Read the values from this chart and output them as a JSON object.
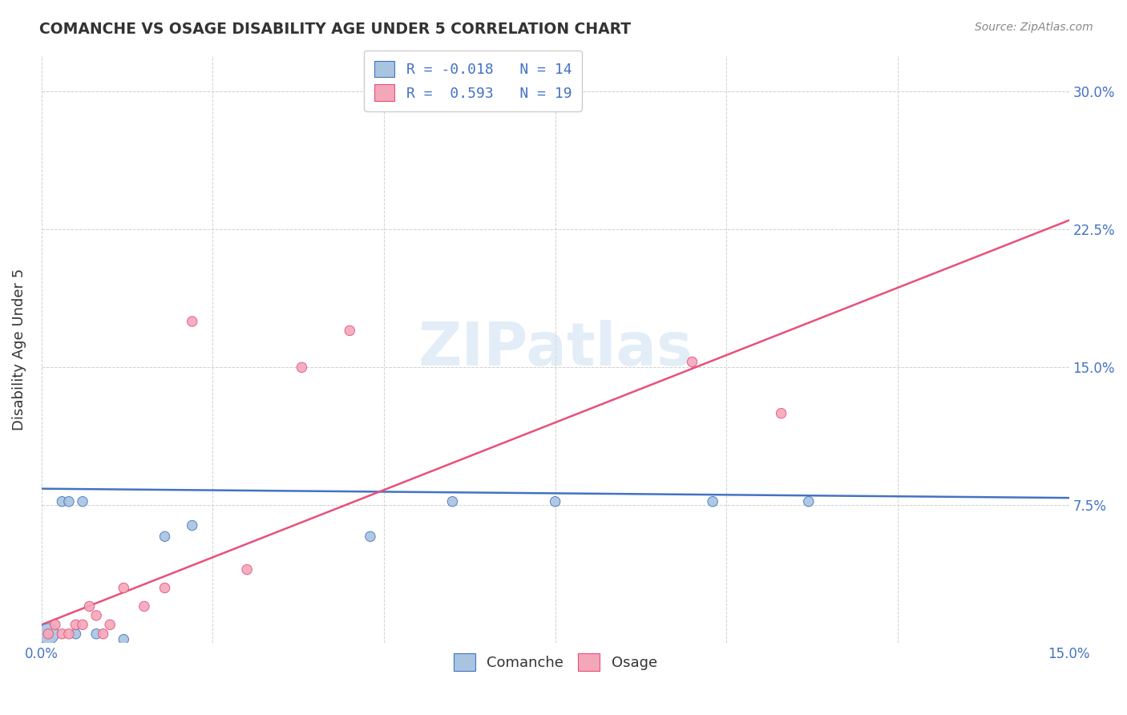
{
  "title": "COMANCHE VS OSAGE DISABILITY AGE UNDER 5 CORRELATION CHART",
  "source": "Source: ZipAtlas.com",
  "xlabel": "",
  "ylabel": "Disability Age Under 5",
  "xlim": [
    0.0,
    0.15
  ],
  "ylim": [
    0.0,
    0.32
  ],
  "xticks": [
    0.0,
    0.025,
    0.05,
    0.075,
    0.1,
    0.125,
    0.15
  ],
  "yticks": [
    0.0,
    0.075,
    0.15,
    0.225,
    0.3
  ],
  "ytick_labels": [
    "",
    "7.5%",
    "15.0%",
    "22.5%",
    "30.0%"
  ],
  "xtick_labels": [
    "0.0%",
    "",
    "",
    "",
    "",
    "",
    "15.0%"
  ],
  "comanche_color": "#a8c4e0",
  "osage_color": "#f4a7b9",
  "line_comanche_color": "#4472c4",
  "line_osage_color": "#e8507a",
  "legend_r_comanche": "R = -0.018",
  "legend_n_comanche": "N = 14",
  "legend_r_osage": "R =  0.593",
  "legend_n_osage": "N = 19",
  "comanche_x": [
    0.001,
    0.003,
    0.004,
    0.005,
    0.006,
    0.008,
    0.012,
    0.018,
    0.022,
    0.048,
    0.06,
    0.075,
    0.098,
    0.112
  ],
  "comanche_y": [
    0.005,
    0.077,
    0.077,
    0.005,
    0.077,
    0.005,
    0.002,
    0.058,
    0.064,
    0.058,
    0.077,
    0.077,
    0.077,
    0.077
  ],
  "comanche_size": [
    350,
    80,
    80,
    80,
    80,
    80,
    80,
    80,
    80,
    80,
    80,
    80,
    80,
    80
  ],
  "osage_x": [
    0.001,
    0.002,
    0.003,
    0.004,
    0.005,
    0.006,
    0.007,
    0.008,
    0.009,
    0.01,
    0.012,
    0.015,
    0.018,
    0.022,
    0.03,
    0.038,
    0.045,
    0.095,
    0.108
  ],
  "osage_y": [
    0.005,
    0.01,
    0.005,
    0.005,
    0.01,
    0.01,
    0.02,
    0.015,
    0.005,
    0.01,
    0.03,
    0.02,
    0.03,
    0.175,
    0.04,
    0.15,
    0.17,
    0.153,
    0.125
  ],
  "osage_size": [
    80,
    80,
    80,
    80,
    80,
    80,
    80,
    80,
    80,
    80,
    80,
    80,
    80,
    80,
    80,
    80,
    80,
    80,
    80
  ],
  "watermark": "ZIPatlas",
  "background_color": "#ffffff",
  "grid_color": "#d0d0d0",
  "comanche_line_x": [
    0.0,
    0.15
  ],
  "comanche_line_y": [
    0.084,
    0.079
  ],
  "osage_line_x": [
    0.0,
    0.15
  ],
  "osage_line_y": [
    0.01,
    0.23
  ]
}
